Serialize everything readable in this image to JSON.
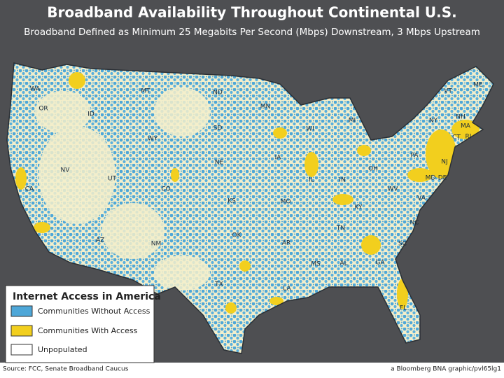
{
  "header": {
    "title": "Broadband Availability Throughout Continental U.S.",
    "subtitle": "Broadband Defined as Minimum 25 Megabits Per Second (Mbps) Downstream, 3 Mbps Upstream"
  },
  "legend": {
    "title": "Internet Access in America",
    "items": [
      "Communities Without Access",
      "Communities With Access",
      "Unpopulated"
    ]
  },
  "states": [
    "WA",
    "OR",
    "ID",
    "MT",
    "WY",
    "NV",
    "UT",
    "CA",
    "AZ",
    "CO",
    "NM",
    "ND",
    "SD",
    "NE",
    "KS",
    "OK",
    "TX",
    "MN",
    "IA",
    "MO",
    "AR",
    "LA",
    "WI",
    "IL",
    "MI",
    "IN",
    "OH",
    "KY",
    "TN",
    "MS",
    "AL",
    "GA",
    "FL",
    "SC",
    "NC",
    "VA",
    "WV",
    "MD",
    "DE",
    "NJ",
    "PA",
    "NY",
    "CT",
    "RI",
    "MA",
    "VT",
    "NH",
    "ME"
  ],
  "footer": {
    "source": "Source: FCC, Senate Broadband Caucus",
    "credit": "a Bloomberg BNA graphic/pvl65lg1"
  }
}
